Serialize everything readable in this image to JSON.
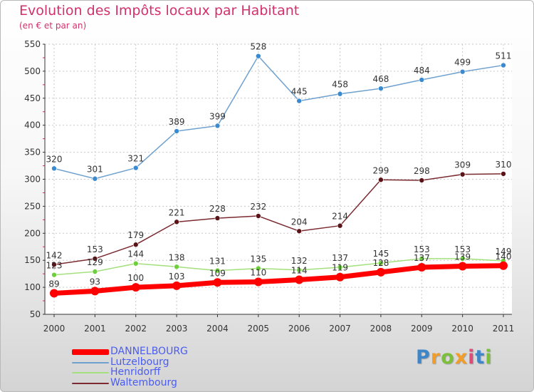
{
  "title": "Evolution des Impôts locaux par Habitant",
  "subtitle": "(en € et par an)",
  "logo": {
    "letters": [
      "P",
      "r",
      "o",
      "x",
      "i",
      "t",
      "i"
    ],
    "colors": [
      "#3f86c8",
      "#f29d2a",
      "#7bbf3a",
      "#f29d2a",
      "#e04a7a",
      "#3f86c8",
      "#7bbf3a"
    ]
  },
  "chart_data": {
    "type": "line",
    "title": "Evolution des Impôts locaux par Habitant",
    "subtitle": "(en € et par an)",
    "x": [
      "2000",
      "2001",
      "2002",
      "2003",
      "2004",
      "2005",
      "2006",
      "2007",
      "2008",
      "2009",
      "2010",
      "2011"
    ],
    "ylim": [
      50,
      550
    ],
    "yticks": [
      50,
      100,
      150,
      200,
      250,
      300,
      350,
      400,
      450,
      500,
      550
    ],
    "grid": true,
    "legend_position": "bottom-left",
    "series": [
      {
        "name": "Lutzelbourg",
        "color": "#6fa1cf",
        "marker": "#3a8ad0",
        "width": 1.5,
        "marker_r": 3.5,
        "values": [
          320,
          301,
          321,
          389,
          399,
          528,
          445,
          458,
          468,
          484,
          499,
          511
        ]
      },
      {
        "name": "Waltembourg",
        "color": "#7a2a30",
        "marker": "#5a1418",
        "width": 1.5,
        "marker_r": 3.5,
        "values": [
          142,
          153,
          179,
          221,
          228,
          232,
          204,
          214,
          299,
          298,
          309,
          310
        ]
      },
      {
        "name": "Henridorff",
        "color": "#a3e07d",
        "marker": "#6ecf3d",
        "width": 1.5,
        "marker_r": 3.5,
        "values": [
          123,
          129,
          144,
          138,
          131,
          135,
          132,
          137,
          145,
          153,
          153,
          149
        ]
      },
      {
        "name": "DANNELBOURG",
        "color": "#ff0000",
        "marker": "#ff0000",
        "width": 7,
        "marker_r": 6,
        "values": [
          89,
          93,
          100,
          103,
          109,
          110,
          114,
          119,
          128,
          137,
          139,
          140
        ]
      }
    ],
    "legend_order": [
      "DANNELBOURG",
      "Lutzelbourg",
      "Henridorff",
      "Waltembourg"
    ]
  }
}
